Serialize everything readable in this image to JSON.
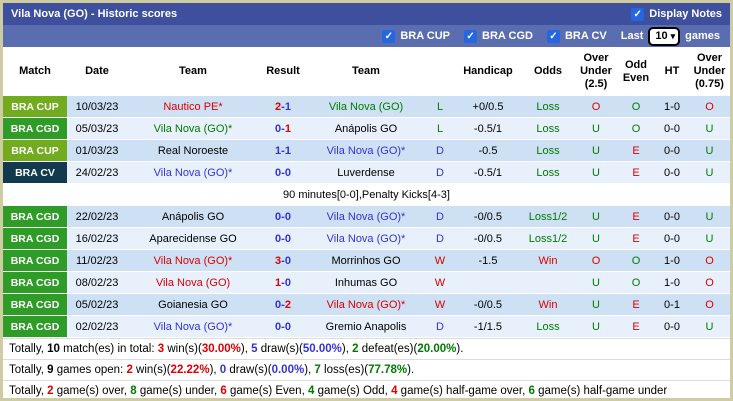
{
  "palette": {
    "red": "#DC0000",
    "blue": "#3333D6",
    "green": "#007A00",
    "black": "#000000",
    "badge_bra_cup": "#72AB1E",
    "badge_bra_cgd": "#2F9C28",
    "badge_bra_cv": "#123A4E",
    "title_bar_bg": "#3E4F9D",
    "filter_bar_bg": "#5A6DB0",
    "row_dark": "#CEE1F4",
    "row_light": "#E8F1FB",
    "checkbox_blue": "#2667E0"
  },
  "title_bar": {
    "title": "Vila Nova (GO) - Historic scores",
    "display_notes_label": "Display Notes",
    "display_notes_checked": true
  },
  "filter_bar": {
    "competitions": [
      {
        "label": "BRA CUP",
        "checked": true
      },
      {
        "label": "BRA CGD",
        "checked": true
      },
      {
        "label": "BRA CV",
        "checked": true
      }
    ],
    "last_label": "Last",
    "last_games_selected": "10",
    "games_label": "games"
  },
  "table": {
    "headers": [
      "Match",
      "Date",
      "Team",
      "Result",
      "Team",
      "",
      "Handicap",
      "Odds",
      "Over\nUnder\n(2.5)",
      "Odd\nEven",
      "HT",
      "Over\nUnder\n(0.75)"
    ],
    "rows": [
      {
        "badge": "BRA CUP",
        "badge_color": "#72AB1E",
        "date": "10/03/23",
        "home": "Nautico PE*",
        "home_color": "red",
        "score_home": "2",
        "score_home_color": "red",
        "score_away": "1",
        "score_away_color": "blue",
        "away": "Vila Nova (GO)",
        "away_color": "green",
        "wdl": "L",
        "wdl_color": "green",
        "handicap": "+0/0.5",
        "odds": "Loss",
        "odds_color": "green",
        "ou25": "O",
        "ou25_color": "red",
        "oddeven": "O",
        "oddeven_color": "green",
        "ht": "1-0",
        "ou075": "O",
        "ou075_color": "red"
      },
      {
        "badge": "BRA CGD",
        "badge_color": "#2F9C28",
        "date": "05/03/23",
        "home": "Vila Nova (GO)*",
        "home_color": "green",
        "score_home": "0",
        "score_home_color": "blue",
        "score_away": "1",
        "score_away_color": "red",
        "away": "Anápolis GO",
        "away_color": "black",
        "wdl": "L",
        "wdl_color": "green",
        "handicap": "-0.5/1",
        "odds": "Loss",
        "odds_color": "green",
        "ou25": "U",
        "ou25_color": "green",
        "oddeven": "O",
        "oddeven_color": "green",
        "ht": "0-0",
        "ou075": "U",
        "ou075_color": "green"
      },
      {
        "badge": "BRA CUP",
        "badge_color": "#72AB1E",
        "date": "01/03/23",
        "home": "Real Noroeste",
        "home_color": "black",
        "score_home": "1",
        "score_home_color": "blue",
        "score_away": "1",
        "score_away_color": "blue",
        "away": "Vila Nova (GO)*",
        "away_color": "blue",
        "wdl": "D",
        "wdl_color": "blue",
        "handicap": "-0.5",
        "odds": "Loss",
        "odds_color": "green",
        "ou25": "U",
        "ou25_color": "green",
        "oddeven": "E",
        "oddeven_color": "red",
        "ht": "0-0",
        "ou075": "U",
        "ou075_color": "green"
      },
      {
        "badge": "BRA CV",
        "badge_color": "#123A4E",
        "date": "24/02/23",
        "home": "Vila Nova (GO)*",
        "home_color": "blue",
        "score_home": "0",
        "score_home_color": "blue",
        "score_away": "0",
        "score_away_color": "blue",
        "away": "Luverdense",
        "away_color": "black",
        "wdl": "D",
        "wdl_color": "blue",
        "handicap": "-0.5/1",
        "odds": "Loss",
        "odds_color": "green",
        "ou25": "U",
        "ou25_color": "green",
        "oddeven": "E",
        "oddeven_color": "red",
        "ht": "0-0",
        "ou075": "U",
        "ou075_color": "green"
      },
      {
        "note": "90 minutes[0-0],Penalty Kicks[4-3]"
      },
      {
        "badge": "BRA CGD",
        "badge_color": "#2F9C28",
        "date": "22/02/23",
        "home": "Anápolis GO",
        "home_color": "black",
        "score_home": "0",
        "score_home_color": "blue",
        "score_away": "0",
        "score_away_color": "blue",
        "away": "Vila Nova (GO)*",
        "away_color": "blue",
        "wdl": "D",
        "wdl_color": "blue",
        "handicap": "-0/0.5",
        "odds": "Loss1/2",
        "odds_color": "green",
        "ou25": "U",
        "ou25_color": "green",
        "oddeven": "E",
        "oddeven_color": "red",
        "ht": "0-0",
        "ou075": "U",
        "ou075_color": "green"
      },
      {
        "badge": "BRA CGD",
        "badge_color": "#2F9C28",
        "date": "16/02/23",
        "home": "Aparecidense GO",
        "home_color": "black",
        "score_home": "0",
        "score_home_color": "blue",
        "score_away": "0",
        "score_away_color": "blue",
        "away": "Vila Nova (GO)*",
        "away_color": "blue",
        "wdl": "D",
        "wdl_color": "blue",
        "handicap": "-0/0.5",
        "odds": "Loss1/2",
        "odds_color": "green",
        "ou25": "U",
        "ou25_color": "green",
        "oddeven": "E",
        "oddeven_color": "red",
        "ht": "0-0",
        "ou075": "U",
        "ou075_color": "green"
      },
      {
        "badge": "BRA CGD",
        "badge_color": "#2F9C28",
        "date": "11/02/23",
        "home": "Vila Nova (GO)*",
        "home_color": "red",
        "score_home": "3",
        "score_home_color": "red",
        "score_away": "0",
        "score_away_color": "blue",
        "away": "Morrinhos GO",
        "away_color": "black",
        "wdl": "W",
        "wdl_color": "red",
        "handicap": "-1.5",
        "odds": "Win",
        "odds_color": "red",
        "ou25": "O",
        "ou25_color": "red",
        "oddeven": "O",
        "oddeven_color": "green",
        "ht": "1-0",
        "ou075": "O",
        "ou075_color": "red"
      },
      {
        "badge": "BRA CGD",
        "badge_color": "#2F9C28",
        "date": "08/02/23",
        "home": "Vila Nova (GO)",
        "home_color": "red",
        "score_home": "1",
        "score_home_color": "red",
        "score_away": "0",
        "score_away_color": "blue",
        "away": "Inhumas GO",
        "away_color": "black",
        "wdl": "W",
        "wdl_color": "red",
        "handicap": "",
        "odds": "",
        "odds_color": "black",
        "ou25": "U",
        "ou25_color": "green",
        "oddeven": "O",
        "oddeven_color": "green",
        "ht": "1-0",
        "ou075": "O",
        "ou075_color": "red"
      },
      {
        "badge": "BRA CGD",
        "badge_color": "#2F9C28",
        "date": "05/02/23",
        "home": "Goianesia GO",
        "home_color": "black",
        "score_home": "0",
        "score_home_color": "blue",
        "score_away": "2",
        "score_away_color": "red",
        "away": "Vila Nova (GO)*",
        "away_color": "red",
        "wdl": "W",
        "wdl_color": "red",
        "handicap": "-0/0.5",
        "odds": "Win",
        "odds_color": "red",
        "ou25": "U",
        "ou25_color": "green",
        "oddeven": "E",
        "oddeven_color": "red",
        "ht": "0-1",
        "ou075": "O",
        "ou075_color": "red"
      },
      {
        "badge": "BRA CGD",
        "badge_color": "#2F9C28",
        "date": "02/02/23",
        "home": "Vila Nova (GO)*",
        "home_color": "blue",
        "score_home": "0",
        "score_home_color": "blue",
        "score_away": "0",
        "score_away_color": "blue",
        "away": "Gremio Anapolis",
        "away_color": "black",
        "wdl": "D",
        "wdl_color": "blue",
        "handicap": "-1/1.5",
        "odds": "Loss",
        "odds_color": "green",
        "ou25": "U",
        "ou25_color": "green",
        "oddeven": "E",
        "oddeven_color": "red",
        "ht": "0-0",
        "ou075": "U",
        "ou075_color": "green"
      }
    ]
  },
  "summary": [
    [
      {
        "t": "Totally, "
      },
      {
        "t": "10",
        "b": 1
      },
      {
        "t": " match(es) in total: "
      },
      {
        "t": "3",
        "c": "red",
        "b": 1
      },
      {
        "t": " win(s)("
      },
      {
        "t": "30.00%",
        "c": "red",
        "b": 1
      },
      {
        "t": "), "
      },
      {
        "t": "5",
        "c": "blue",
        "b": 1
      },
      {
        "t": " draw(s)("
      },
      {
        "t": "50.00%",
        "c": "blue",
        "b": 1
      },
      {
        "t": "), "
      },
      {
        "t": "2",
        "c": "green",
        "b": 1
      },
      {
        "t": " defeat(es)("
      },
      {
        "t": "20.00%",
        "c": "green",
        "b": 1
      },
      {
        "t": ")."
      }
    ],
    [
      {
        "t": "Totally, "
      },
      {
        "t": "9",
        "b": 1
      },
      {
        "t": " games open: "
      },
      {
        "t": "2",
        "c": "red",
        "b": 1
      },
      {
        "t": " win(s)("
      },
      {
        "t": "22.22%",
        "c": "red",
        "b": 1
      },
      {
        "t": "), "
      },
      {
        "t": "0",
        "c": "blue",
        "b": 1
      },
      {
        "t": " draw(s)("
      },
      {
        "t": "0.00%",
        "c": "blue",
        "b": 1
      },
      {
        "t": "), "
      },
      {
        "t": "7",
        "c": "green",
        "b": 1
      },
      {
        "t": " loss(es)("
      },
      {
        "t": "77.78%",
        "c": "green",
        "b": 1
      },
      {
        "t": ")."
      }
    ],
    [
      {
        "t": "Totally, "
      },
      {
        "t": "2",
        "c": "red",
        "b": 1
      },
      {
        "t": " game(s) over, "
      },
      {
        "t": "8",
        "c": "green",
        "b": 1
      },
      {
        "t": " game(s) under, "
      },
      {
        "t": "6",
        "c": "red",
        "b": 1
      },
      {
        "t": " game(s) Even, "
      },
      {
        "t": "4",
        "c": "green",
        "b": 1
      },
      {
        "t": " game(s) Odd, "
      },
      {
        "t": "4",
        "c": "red",
        "b": 1
      },
      {
        "t": " game(s) half-game over, "
      },
      {
        "t": "6",
        "c": "green",
        "b": 1
      },
      {
        "t": " game(s) half-game under"
      }
    ]
  ]
}
